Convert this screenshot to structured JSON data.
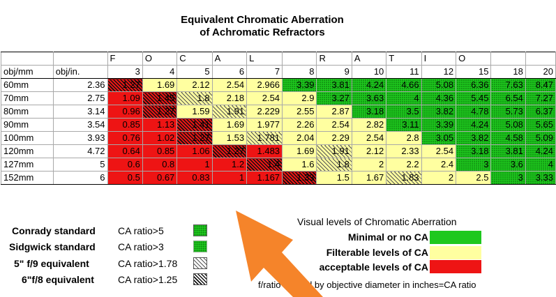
{
  "title_line1": "Equivalent Chromatic Aberration",
  "title_line2": "of Achromatic Refractors",
  "chart_data": {
    "type": "table",
    "title": "Equivalent Chromatic Aberration of Achromatic Refractors",
    "header_letters": [
      "",
      "",
      "F",
      "O",
      "C",
      "A",
      "L",
      "",
      "R",
      "A",
      "T",
      "I",
      "O",
      ""
    ],
    "col_headers": [
      "obj/mm",
      "obj/in.",
      "3",
      "4",
      "5",
      "6",
      "7",
      "8",
      "9",
      "10",
      "11",
      "12",
      "15",
      "18",
      "20"
    ],
    "rows": [
      {
        "mm": "60mm",
        "in": "2.36",
        "values": [
          "1.27",
          "1.69",
          "2.12",
          "2.54",
          "2.966",
          "3.39",
          "3.81",
          "4.24",
          "4.66",
          "5.08",
          "6.36",
          "7.63",
          "8.47"
        ]
      },
      {
        "mm": "70mm",
        "in": "2.75",
        "values": [
          "1.09",
          "1.45",
          "1.8",
          "2.18",
          "2.54",
          "2.9",
          "3.27",
          "3.63",
          "4",
          "4.36",
          "5.45",
          "6.54",
          "7.27"
        ]
      },
      {
        "mm": "80mm",
        "in": "3.14",
        "values": [
          "0.96",
          "1.27",
          "1.59",
          "1.91",
          "2.229",
          "2.55",
          "2.87",
          "3.18",
          "3.5",
          "3.82",
          "4.78",
          "5.73",
          "6.37"
        ]
      },
      {
        "mm": "90mm",
        "in": "3.54",
        "values": [
          "0.85",
          "1.13",
          "1.41",
          "1.69",
          "1.977",
          "2.26",
          "2.54",
          "2.82",
          "3.11",
          "3.39",
          "4.24",
          "5.08",
          "5.65"
        ]
      },
      {
        "mm": "100mm",
        "in": "3.93",
        "values": [
          "0.76",
          "1.02",
          "1.27",
          "1.53",
          "1.781",
          "2.04",
          "2.29",
          "2.54",
          "2.8",
          "3.05",
          "3.82",
          "4.58",
          "5.09"
        ]
      },
      {
        "mm": "120mm",
        "in": "4.72",
        "values": [
          "0.64",
          "0.85",
          "1.06",
          "1.27",
          "1.483",
          "1.69",
          "1.91",
          "2.12",
          "2.33",
          "2.54",
          "3.18",
          "3.81",
          "4.24"
        ]
      },
      {
        "mm": "127mm",
        "in": "5",
        "values": [
          "0.6",
          "0.8",
          "1",
          "1.2",
          "1.4",
          "1.6",
          "1.8",
          "2",
          "2.2",
          "2.4",
          "3",
          "3.6",
          "4"
        ]
      },
      {
        "mm": "152mm",
        "in": "6",
        "values": [
          "0.5",
          "0.67",
          "0.83",
          "1",
          "1.167",
          "1.33",
          "1.5",
          "1.67",
          "1.83",
          "2",
          "2.5",
          "3",
          "3.33"
        ]
      }
    ],
    "thresholds": {
      "conrady": 5,
      "sidgwick": 3,
      "five_inch_f9": 1.78,
      "six_inch_f8": 1.25
    }
  },
  "legend_left": [
    {
      "name": "Conrady standard",
      "value": "CA ratio>5"
    },
    {
      "name": "Sidgwick standard",
      "value": "CA ratio>3"
    },
    {
      "name": "5\" f/9  equivalent",
      "value": "CA ratio>1.78"
    },
    {
      "name": "6\"f/8 equivalent",
      "value": "CA ratio>1.25"
    }
  ],
  "legend_right_title": "Visual levels of Chromatic Aberration",
  "legend_right": [
    {
      "label": "Minimal or no CA",
      "color": "#1ec81e"
    },
    {
      "label": "Filterable levels of CA",
      "color": "#ffffa0"
    },
    {
      "label": "acceptable levels of CA",
      "color": "#ee1414"
    }
  ],
  "footnote": "f/ratio divided by objective diameter in inches=CA ratio",
  "colors": {
    "green": "#1ec81e",
    "yellow": "#ffffa0",
    "red": "#ee1414",
    "arrow": "#f5842a"
  }
}
